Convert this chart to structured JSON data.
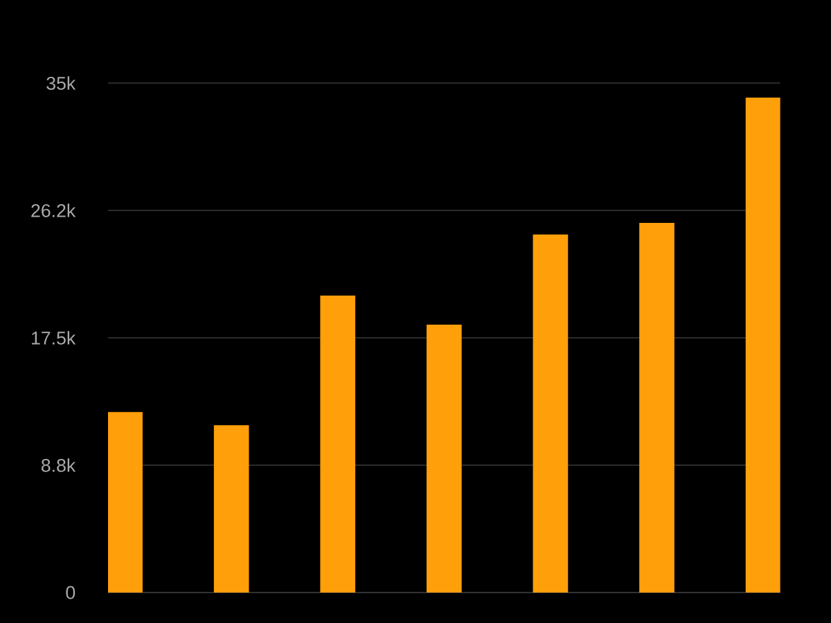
{
  "chart_data": {
    "type": "bar",
    "categories": [
      null,
      null,
      null,
      null,
      null,
      null,
      null
    ],
    "values": [
      12400,
      11500,
      20400,
      18400,
      24600,
      25400,
      34000
    ],
    "color": "#ff9f0a",
    "ylim": [
      0,
      35000
    ],
    "yticks": [
      0,
      {
        "value": 8750,
        "label": "8.8k"
      },
      {
        "value": 17500,
        "label": "17.5k"
      },
      {
        "value": 26250,
        "label": "26.2k"
      },
      {
        "value": 35000,
        "label": "35k"
      }
    ],
    "grid": "y"
  }
}
